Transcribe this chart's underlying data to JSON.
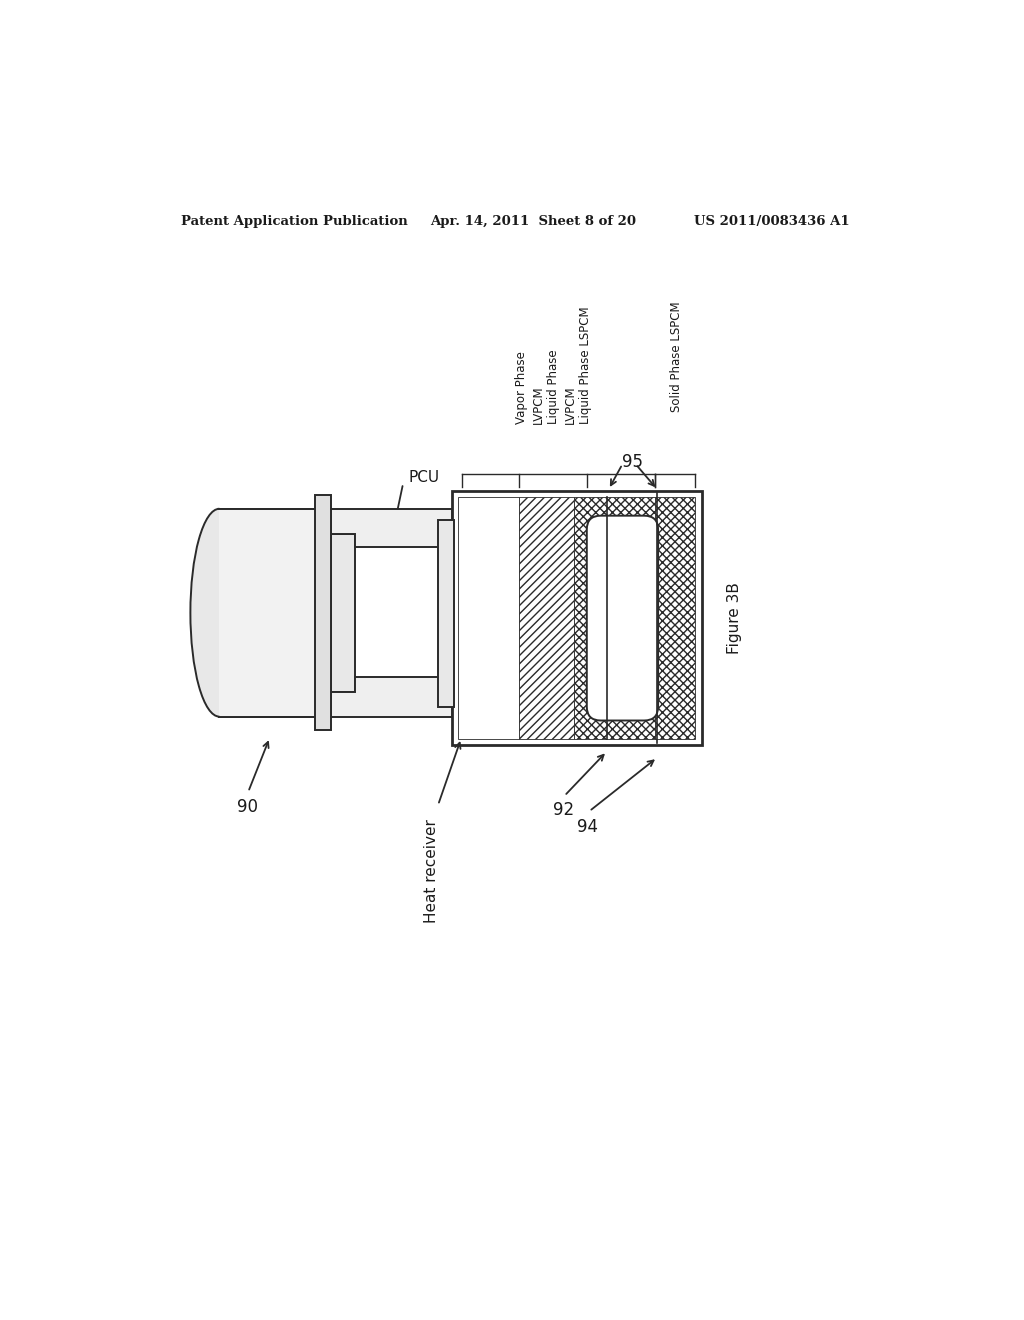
{
  "bg_color": "#ffffff",
  "header_left": "Patent Application Publication",
  "header_center": "Apr. 14, 2011  Sheet 8 of 20",
  "header_right": "US 2011/0083436 A1",
  "figure_label": "Figure 3B",
  "label_90": "90",
  "label_92": "92",
  "label_94": "94",
  "label_95": "95",
  "label_PCU": "PCU",
  "label_heat_receiver": "Heat receiver",
  "label_vapor": "Vapor Phase\nLVPCM\nLiquid Phase\nLVPCM\nLiquid Phase LSPCM",
  "label_solid": "Solid Phase LSPCM",
  "line_color": "#2a2a2a",
  "text_color": "#1a1a1a"
}
